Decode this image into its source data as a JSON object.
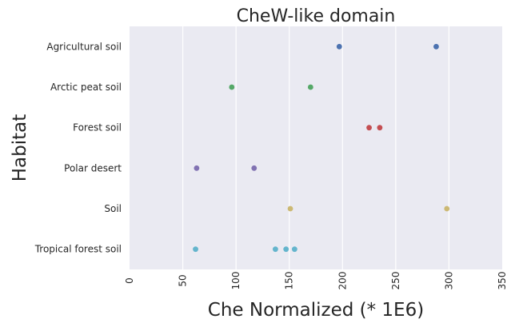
{
  "chart_data": {
    "type": "scatter",
    "title": "CheW-like domain",
    "xlabel": "Che Normalized (* 1E6)",
    "ylabel": "Habitat",
    "xlim": [
      0,
      350
    ],
    "xticks": [
      "0",
      "50",
      "100",
      "150",
      "200",
      "250",
      "300",
      "350"
    ],
    "grid": true,
    "categories": [
      "Agricultural soil",
      "Arctic peat soil",
      "Forest soil",
      "Polar desert",
      "Soil",
      "Tropical forest soil"
    ],
    "series": [
      {
        "category": "Agricultural soil",
        "color": "#4c72b0",
        "values": [
          197,
          288
        ]
      },
      {
        "category": "Arctic peat soil",
        "color": "#55a868",
        "values": [
          96,
          170
        ]
      },
      {
        "category": "Forest soil",
        "color": "#c44e52",
        "values": [
          225,
          235
        ]
      },
      {
        "category": "Polar desert",
        "color": "#8172b2",
        "values": [
          63,
          117
        ]
      },
      {
        "category": "Soil",
        "color": "#ccb974",
        "values": [
          151,
          298
        ]
      },
      {
        "category": "Tropical forest soil",
        "color": "#64b5cd",
        "values": [
          62,
          137,
          147,
          155
        ]
      }
    ]
  }
}
